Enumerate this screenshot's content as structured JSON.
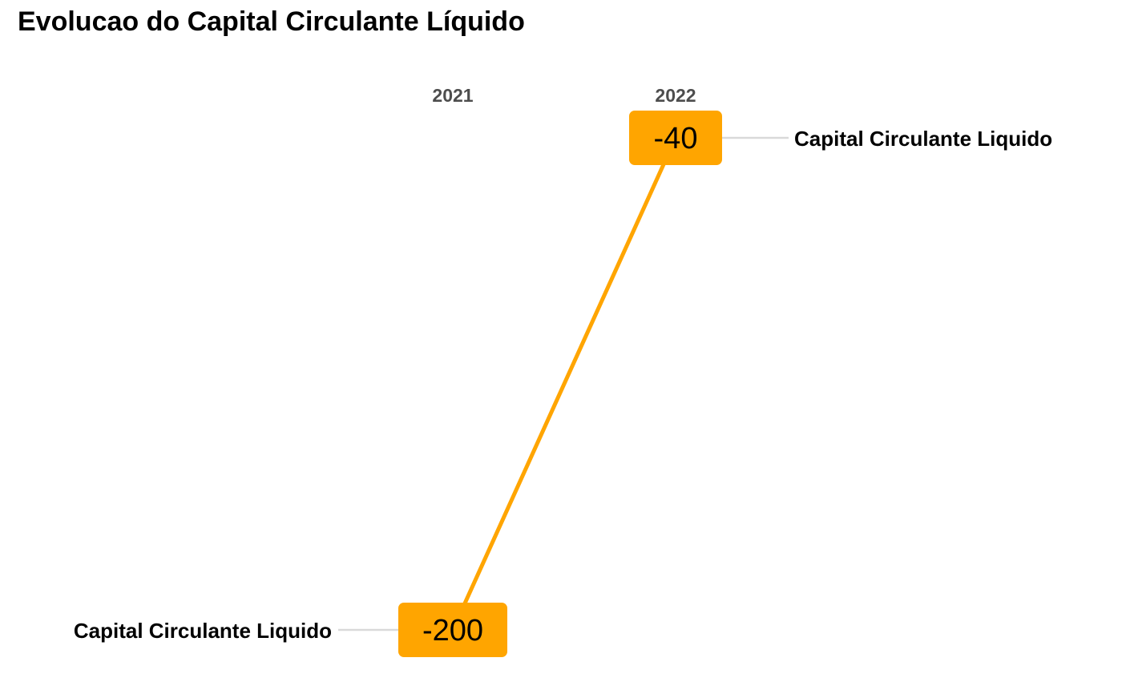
{
  "chart_data": {
    "type": "line",
    "title": "Evolucao do Capital Circulante Líquido",
    "categories": [
      "2021",
      "2022"
    ],
    "series": [
      {
        "name": "Capital Circulante Liquido",
        "values": [
          -200,
          -40
        ]
      }
    ],
    "xlabel": "",
    "ylabel": "",
    "grid": false,
    "legend": "none",
    "colors": {
      "series": "#FFA500",
      "label_box": "#FFA500",
      "leader_line": "#d9d9d9",
      "tick_text": "#4d4d4d",
      "text": "#000000"
    }
  }
}
